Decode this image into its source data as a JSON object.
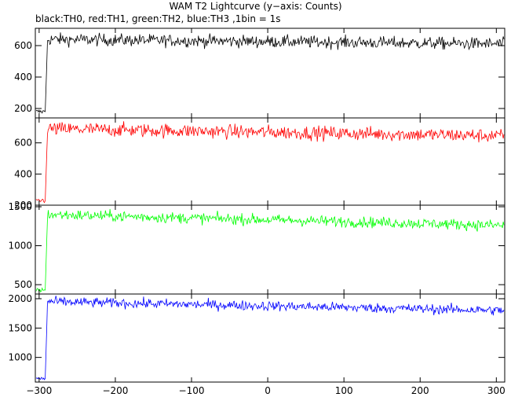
{
  "title": "WAM T2 Lightcurve (y−axis: Counts)",
  "subtitle": "black:TH0, red:TH1, green:TH2, blue:TH3 ,1bin = 1s",
  "chart_data": {
    "type": "line",
    "xlim": [
      -305,
      311
    ],
    "x_ticks": [
      -300,
      -200,
      -100,
      0,
      100,
      200,
      300
    ],
    "x_tick_labels": [
      "−300",
      "−200",
      "−100",
      "0",
      "100",
      "200",
      "300"
    ],
    "panels": [
      {
        "series_name": "TH0",
        "color": "#000000",
        "ylim": [
          140,
          710
        ],
        "y_ticks": [
          200,
          400,
          600
        ],
        "y_tick_labels": [
          "200",
          "400",
          "600"
        ],
        "pre_level": 180,
        "onset_x": -292,
        "start_level": 640,
        "end_level": 610,
        "noise": 28
      },
      {
        "series_name": "TH1",
        "color": "#ff0000",
        "ylim": [
          200,
          760
        ],
        "y_ticks": [
          200,
          400,
          600
        ],
        "y_tick_labels": [
          "200",
          "400",
          "600"
        ],
        "pre_level": 230,
        "onset_x": -292,
        "start_level": 690,
        "end_level": 645,
        "noise": 32
      },
      {
        "series_name": "TH2",
        "color": "#00ff00",
        "ylim": [
          380,
          1520
        ],
        "y_ticks": [
          500,
          1000,
          1500
        ],
        "y_tick_labels": [
          "500",
          "1000",
          "1500"
        ],
        "pre_level": 430,
        "onset_x": -292,
        "start_level": 1400,
        "end_level": 1260,
        "noise": 50
      },
      {
        "series_name": "TH3",
        "color": "#0000ff",
        "ylim": [
          580,
          2080
        ],
        "y_ticks": [
          1000,
          1500,
          2000
        ],
        "y_tick_labels": [
          "1000",
          "1500",
          "2000"
        ],
        "pre_level": 640,
        "onset_x": -292,
        "start_level": 1950,
        "end_level": 1800,
        "noise": 60
      }
    ]
  }
}
